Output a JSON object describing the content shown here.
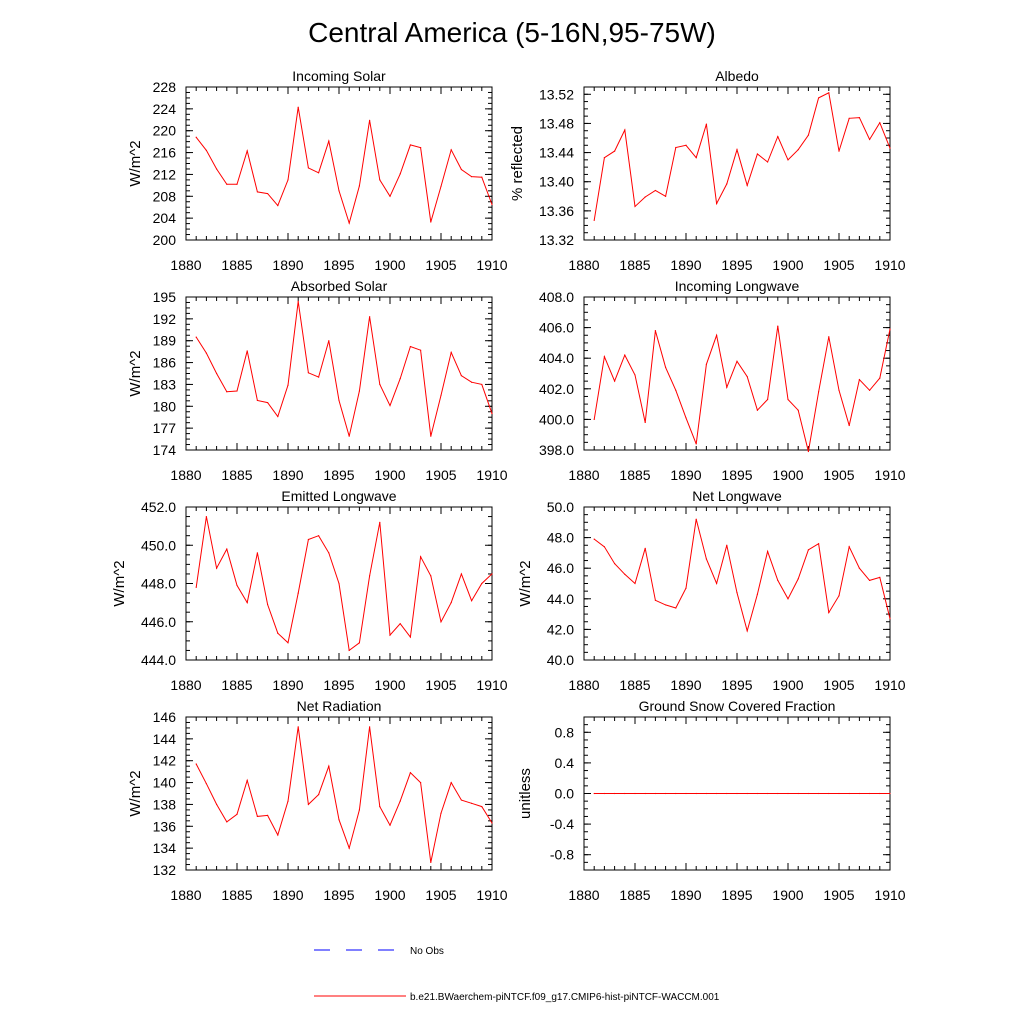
{
  "title": "Central America (5-16N,95-75W)",
  "colors": {
    "model": "#ff0000",
    "obs": "#0000ff",
    "axis": "#000000"
  },
  "legend": {
    "obs_label": "No Obs",
    "model_label": "b.e21.BWaerchem-piNTCF.f09_g17.CMIP6-hist-piNTCF-WACCM.001"
  },
  "chart_data": [
    {
      "type": "line",
      "title": "Incoming Solar",
      "xlabel": "",
      "ylabel": "W/m^2",
      "xlim": [
        1880,
        1910
      ],
      "ylim": [
        200,
        228
      ],
      "xticks": [
        "1880",
        "1885",
        "1890",
        "1895",
        "1900",
        "1905",
        "1910"
      ],
      "yticks": [
        "200",
        "204",
        "208",
        "212",
        "216",
        "220",
        "224",
        "228"
      ],
      "x": [
        1881,
        1882,
        1883,
        1884,
        1885,
        1886,
        1887,
        1888,
        1889,
        1890,
        1891,
        1892,
        1893,
        1894,
        1895,
        1896,
        1897,
        1898,
        1899,
        1900,
        1901,
        1902,
        1903,
        1904,
        1905,
        1906,
        1907,
        1908,
        1909,
        1910
      ],
      "series": [
        {
          "values": [
            218.8,
            216.4,
            213.0,
            210.2,
            210.2,
            216.3,
            208.8,
            208.5,
            206.3,
            211.0,
            224.3,
            213.2,
            212.3,
            218.1,
            209.0,
            203.1,
            209.9,
            221.9,
            211.0,
            208.0,
            212.1,
            217.4,
            216.9,
            203.3,
            209.8,
            216.5,
            212.9,
            211.6,
            211.5,
            206.5
          ]
        }
      ]
    },
    {
      "type": "line",
      "title": "Albedo",
      "xlabel": "",
      "ylabel": "% reflected",
      "xlim": [
        1880,
        1910
      ],
      "ylim": [
        13.32,
        13.53
      ],
      "xticks": [
        "1880",
        "1885",
        "1890",
        "1895",
        "1900",
        "1905",
        "1910"
      ],
      "yticks": [
        "13.32",
        "13.36",
        "13.40",
        "13.44",
        "13.48",
        "13.52"
      ],
      "x": [
        1881,
        1882,
        1883,
        1884,
        1885,
        1886,
        1887,
        1888,
        1889,
        1890,
        1891,
        1892,
        1893,
        1894,
        1895,
        1896,
        1897,
        1898,
        1899,
        1900,
        1901,
        1902,
        1903,
        1904,
        1905,
        1906,
        1907,
        1908,
        1909,
        1910
      ],
      "series": [
        {
          "values": [
            13.347,
            13.433,
            13.442,
            13.471,
            13.366,
            13.379,
            13.388,
            13.38,
            13.447,
            13.45,
            13.433,
            13.479,
            13.37,
            13.397,
            13.444,
            13.395,
            13.438,
            13.427,
            13.462,
            13.43,
            13.444,
            13.464,
            13.515,
            13.522,
            13.442,
            13.487,
            13.488,
            13.458,
            13.481,
            13.446
          ]
        }
      ]
    },
    {
      "type": "line",
      "title": "Absorbed Solar",
      "xlabel": "",
      "ylabel": "W/m^2",
      "xlim": [
        1880,
        1910
      ],
      "ylim": [
        174,
        195
      ],
      "xticks": [
        "1880",
        "1885",
        "1890",
        "1895",
        "1900",
        "1905",
        "1910"
      ],
      "yticks": [
        "174",
        "177",
        "180",
        "183",
        "186",
        "189",
        "192",
        "195"
      ],
      "x": [
        1881,
        1882,
        1883,
        1884,
        1885,
        1886,
        1887,
        1888,
        1889,
        1890,
        1891,
        1892,
        1893,
        1894,
        1895,
        1896,
        1897,
        1898,
        1899,
        1900,
        1901,
        1902,
        1903,
        1904,
        1905,
        1906,
        1907,
        1908,
        1909,
        1910
      ],
      "series": [
        {
          "values": [
            189.5,
            187.3,
            184.5,
            182.0,
            182.1,
            187.6,
            180.8,
            180.5,
            178.6,
            182.9,
            194.4,
            184.6,
            184.0,
            189.0,
            180.8,
            175.9,
            182.1,
            192.3,
            183.0,
            180.1,
            183.8,
            188.2,
            187.7,
            175.9,
            181.5,
            187.4,
            184.2,
            183.3,
            183.0,
            179.0
          ]
        }
      ]
    },
    {
      "type": "line",
      "title": "Incoming Longwave",
      "xlabel": "",
      "ylabel": "",
      "xlim": [
        1880,
        1910
      ],
      "ylim": [
        398,
        408
      ],
      "xticks": [
        "1880",
        "1885",
        "1890",
        "1895",
        "1900",
        "1905",
        "1910"
      ],
      "yticks": [
        "398.0",
        "400.0",
        "402.0",
        "404.0",
        "406.0",
        "408.0"
      ],
      "x": [
        1881,
        1882,
        1883,
        1884,
        1885,
        1886,
        1887,
        1888,
        1889,
        1890,
        1891,
        1892,
        1893,
        1894,
        1895,
        1896,
        1897,
        1898,
        1899,
        1900,
        1901,
        1902,
        1903,
        1904,
        1905,
        1906,
        1907,
        1908,
        1909,
        1910
      ],
      "series": [
        {
          "values": [
            400.0,
            404.1,
            402.5,
            404.2,
            402.9,
            399.8,
            405.8,
            403.4,
            401.9,
            400.1,
            398.4,
            403.6,
            405.5,
            402.1,
            403.8,
            402.8,
            400.6,
            401.3,
            406.1,
            401.3,
            400.6,
            397.9,
            401.8,
            405.4,
            401.9,
            399.6,
            402.6,
            401.9,
            402.7,
            405.9
          ]
        }
      ]
    },
    {
      "type": "line",
      "title": "Emitted Longwave",
      "xlabel": "",
      "ylabel": "W/m^2",
      "xlim": [
        1880,
        1910
      ],
      "ylim": [
        444,
        452
      ],
      "xticks": [
        "1880",
        "1885",
        "1890",
        "1895",
        "1900",
        "1905",
        "1910"
      ],
      "yticks": [
        "444.0",
        "446.0",
        "448.0",
        "450.0",
        "452.0"
      ],
      "x": [
        1881,
        1882,
        1883,
        1884,
        1885,
        1886,
        1887,
        1888,
        1889,
        1890,
        1891,
        1892,
        1893,
        1894,
        1895,
        1896,
        1897,
        1898,
        1899,
        1900,
        1901,
        1902,
        1903,
        1904,
        1905,
        1906,
        1907,
        1908,
        1909,
        1910
      ],
      "series": [
        {
          "values": [
            447.8,
            451.5,
            448.8,
            449.8,
            447.9,
            447.0,
            449.6,
            446.9,
            445.4,
            444.9,
            447.5,
            450.3,
            450.5,
            449.6,
            448.0,
            444.5,
            444.9,
            448.4,
            451.2,
            445.3,
            445.9,
            445.2,
            449.4,
            448.4,
            446.0,
            447.0,
            448.5,
            447.1,
            448.0,
            448.5
          ]
        }
      ]
    },
    {
      "type": "line",
      "title": "Net Longwave",
      "xlabel": "",
      "ylabel": "W/m^2",
      "xlim": [
        1880,
        1910
      ],
      "ylim": [
        40,
        50
      ],
      "xticks": [
        "1880",
        "1885",
        "1890",
        "1895",
        "1900",
        "1905",
        "1910"
      ],
      "yticks": [
        "40.0",
        "42.0",
        "44.0",
        "46.0",
        "48.0",
        "50.0"
      ],
      "x": [
        1881,
        1882,
        1883,
        1884,
        1885,
        1886,
        1887,
        1888,
        1889,
        1890,
        1891,
        1892,
        1893,
        1894,
        1895,
        1896,
        1897,
        1898,
        1899,
        1900,
        1901,
        1902,
        1903,
        1904,
        1905,
        1906,
        1907,
        1908,
        1909,
        1910
      ],
      "series": [
        {
          "values": [
            47.9,
            47.4,
            46.3,
            45.6,
            45.0,
            47.3,
            43.9,
            43.6,
            43.4,
            44.7,
            49.2,
            46.6,
            45.0,
            47.5,
            44.4,
            41.9,
            44.3,
            47.1,
            45.2,
            44.0,
            45.3,
            47.2,
            47.6,
            43.1,
            44.2,
            47.4,
            46.0,
            45.2,
            45.4,
            42.7
          ]
        }
      ]
    },
    {
      "type": "line",
      "title": "Net Radiation",
      "xlabel": "",
      "ylabel": "W/m^2",
      "xlim": [
        1880,
        1910
      ],
      "ylim": [
        132,
        146
      ],
      "xticks": [
        "1880",
        "1885",
        "1890",
        "1895",
        "1900",
        "1905",
        "1910"
      ],
      "yticks": [
        "132",
        "134",
        "136",
        "138",
        "140",
        "142",
        "144",
        "146"
      ],
      "x": [
        1881,
        1882,
        1883,
        1884,
        1885,
        1886,
        1887,
        1888,
        1889,
        1890,
        1891,
        1892,
        1893,
        1894,
        1895,
        1896,
        1897,
        1898,
        1899,
        1900,
        1901,
        1902,
        1903,
        1904,
        1905,
        1906,
        1907,
        1908,
        1909,
        1910
      ],
      "series": [
        {
          "values": [
            141.7,
            139.9,
            138.0,
            136.4,
            137.1,
            140.2,
            136.9,
            137.0,
            135.2,
            138.3,
            145.1,
            138.0,
            138.9,
            141.5,
            136.6,
            134.0,
            137.5,
            145.1,
            137.8,
            136.1,
            138.3,
            140.9,
            140.0,
            132.7,
            137.2,
            140.0,
            138.4,
            138.1,
            137.8,
            136.3
          ]
        }
      ]
    },
    {
      "type": "line",
      "title": "Ground Snow Covered Fraction",
      "xlabel": "",
      "ylabel": "unitless",
      "xlim": [
        1880,
        1910
      ],
      "ylim": [
        -1.0,
        1.0
      ],
      "xticks": [
        "1880",
        "1885",
        "1890",
        "1895",
        "1900",
        "1905",
        "1910"
      ],
      "yticks": [
        "-0.8",
        "-0.4",
        "0.0",
        "0.4",
        "0.8"
      ],
      "x": [
        1881,
        1882,
        1883,
        1884,
        1885,
        1886,
        1887,
        1888,
        1889,
        1890,
        1891,
        1892,
        1893,
        1894,
        1895,
        1896,
        1897,
        1898,
        1899,
        1900,
        1901,
        1902,
        1903,
        1904,
        1905,
        1906,
        1907,
        1908,
        1909,
        1910
      ],
      "series": [
        {
          "values": [
            0,
            0,
            0,
            0,
            0,
            0,
            0,
            0,
            0,
            0,
            0,
            0,
            0,
            0,
            0,
            0,
            0,
            0,
            0,
            0,
            0,
            0,
            0,
            0,
            0,
            0,
            0,
            0,
            0,
            0
          ]
        }
      ]
    }
  ]
}
